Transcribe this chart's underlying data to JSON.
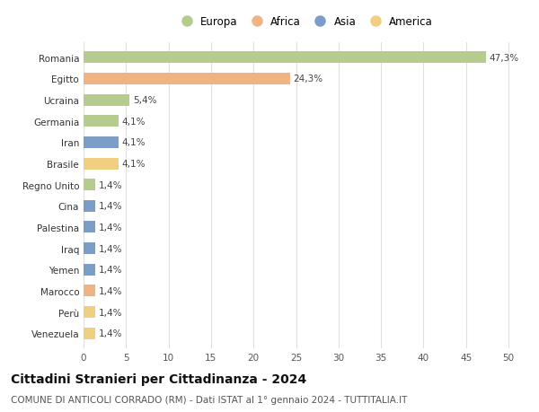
{
  "countries": [
    "Romania",
    "Egitto",
    "Ucraina",
    "Germania",
    "Iran",
    "Brasile",
    "Regno Unito",
    "Cina",
    "Palestina",
    "Iraq",
    "Yemen",
    "Marocco",
    "Perù",
    "Venezuela"
  ],
  "values": [
    47.3,
    24.3,
    5.4,
    4.1,
    4.1,
    4.1,
    1.4,
    1.4,
    1.4,
    1.4,
    1.4,
    1.4,
    1.4,
    1.4
  ],
  "labels": [
    "47,3%",
    "24,3%",
    "5,4%",
    "4,1%",
    "4,1%",
    "4,1%",
    "1,4%",
    "1,4%",
    "1,4%",
    "1,4%",
    "1,4%",
    "1,4%",
    "1,4%",
    "1,4%"
  ],
  "continents": [
    "Europa",
    "Africa",
    "Europa",
    "Europa",
    "Asia",
    "America",
    "Europa",
    "Asia",
    "Asia",
    "Asia",
    "Asia",
    "Africa",
    "America",
    "America"
  ],
  "continent_colors": {
    "Europa": "#b5cc8e",
    "Africa": "#f0b482",
    "Asia": "#7b9dc7",
    "America": "#f0d080"
  },
  "legend_order": [
    "Europa",
    "Africa",
    "Asia",
    "America"
  ],
  "title": "Cittadini Stranieri per Cittadinanza - 2024",
  "subtitle": "COMUNE DI ANTICOLI CORRADO (RM) - Dati ISTAT al 1° gennaio 2024 - TUTTITALIA.IT",
  "xlim": [
    0,
    52
  ],
  "xticks": [
    0,
    5,
    10,
    15,
    20,
    25,
    30,
    35,
    40,
    45,
    50
  ],
  "background_color": "#ffffff",
  "grid_color": "#e0e0e0",
  "bar_height": 0.55,
  "title_fontsize": 10,
  "subtitle_fontsize": 7.5,
  "label_fontsize": 7.5,
  "tick_fontsize": 7.5,
  "legend_fontsize": 8.5
}
